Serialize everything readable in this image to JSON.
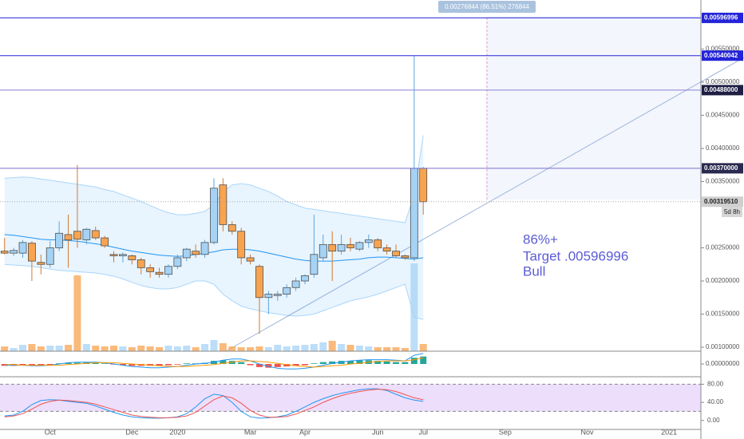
{
  "chart_data": [
    {
      "type": "candlestick",
      "categories": [
        null,
        null,
        null,
        null,
        null,
        "Oct",
        null,
        null,
        null,
        null,
        null,
        null,
        null,
        null,
        "Dec",
        null,
        null,
        null,
        null,
        "2020",
        null,
        null,
        null,
        null,
        null,
        null,
        null,
        "Mar",
        null,
        null,
        null,
        null,
        null,
        "Apr",
        null,
        null,
        null,
        null,
        null,
        null,
        null,
        "Jun",
        null,
        null,
        null,
        null,
        "Jul",
        null,
        null,
        null,
        null,
        null,
        null,
        null,
        null,
        "Sep",
        null,
        null,
        null,
        null,
        null,
        null,
        null,
        null,
        "Nov",
        null,
        null,
        null,
        null,
        null,
        null,
        null,
        null,
        "2021",
        null,
        null,
        null
      ],
      "open": [
        0.00245,
        0.00242,
        0.00242,
        0.00257,
        0.00228,
        0.00225,
        0.0025,
        0.0027,
        0.00275,
        0.00262,
        0.00276,
        0.00265,
        0.0024,
        0.00238,
        0.00238,
        0.00232,
        0.0022,
        0.00213,
        0.0021,
        0.00222,
        0.00235,
        0.00245,
        0.0024,
        0.00258,
        0.00345,
        0.00285,
        0.00275,
        0.00235,
        0.00222,
        0.00175,
        0.00178,
        0.0018,
        0.0019,
        0.002,
        0.0021,
        0.00235,
        0.00255,
        0.00245,
        0.00255,
        0.00248,
        0.00258,
        0.00262,
        0.0025,
        0.00245,
        0.00238,
        0.00235,
        0.0037,
        null,
        null,
        null,
        null,
        null,
        null,
        null,
        null,
        null,
        null,
        null,
        null,
        null,
        null,
        null,
        null,
        null,
        null,
        null,
        null,
        null,
        null,
        null,
        null,
        null,
        null,
        null,
        null,
        null,
        null
      ],
      "high": [
        0.00265,
        0.0025,
        0.00262,
        0.0026,
        0.0024,
        0.0026,
        0.0029,
        0.003,
        0.00375,
        0.0028,
        0.00282,
        0.00268,
        0.00245,
        0.00243,
        0.0024,
        0.00235,
        0.00225,
        0.0022,
        0.00225,
        0.0024,
        0.0025,
        0.00255,
        0.00262,
        0.00355,
        0.00355,
        0.0029,
        0.0028,
        0.0024,
        0.00225,
        0.00185,
        0.00185,
        0.00195,
        0.00205,
        0.0021,
        0.003,
        0.0027,
        0.00275,
        0.0027,
        0.00265,
        0.0026,
        0.0027,
        0.00265,
        0.00255,
        0.00255,
        0.0024,
        0.00540042,
        0.00372,
        null,
        null,
        null,
        null,
        null,
        null,
        null,
        null,
        null,
        null,
        null,
        null,
        null,
        null,
        null,
        null,
        null,
        null,
        null,
        null,
        null,
        null,
        null,
        null,
        null,
        null,
        null,
        null,
        null,
        null
      ],
      "low": [
        0.0024,
        0.00238,
        0.00235,
        0.002,
        0.0021,
        0.0022,
        0.00245,
        0.0022,
        0.0025,
        0.00255,
        0.00262,
        0.0025,
        0.00228,
        0.00228,
        0.00225,
        0.0021,
        0.00205,
        0.00205,
        0.00205,
        0.00218,
        0.0023,
        0.00235,
        0.00235,
        0.00255,
        0.00275,
        0.0027,
        0.00225,
        0.00225,
        0.0012,
        0.0015,
        0.0017,
        0.00175,
        0.00185,
        0.00195,
        0.00205,
        0.0023,
        0.002,
        0.0024,
        0.00245,
        0.00245,
        0.0025,
        0.00245,
        0.0024,
        0.00235,
        0.00232,
        0.0023,
        0.003,
        null,
        null,
        null,
        null,
        null,
        null,
        null,
        null,
        null,
        null,
        null,
        null,
        null,
        null,
        null,
        null,
        null,
        null,
        null,
        null,
        null,
        null,
        null,
        null,
        null,
        null,
        null,
        null,
        null,
        null
      ],
      "close": [
        0.00242,
        0.00246,
        0.00258,
        0.0023,
        0.00225,
        0.0025,
        0.00272,
        0.00262,
        0.00263,
        0.00278,
        0.00265,
        0.00253,
        0.00238,
        0.0024,
        0.00232,
        0.0022,
        0.00214,
        0.0021,
        0.00222,
        0.00235,
        0.00248,
        0.0024,
        0.00258,
        0.0034,
        0.00285,
        0.00275,
        0.00235,
        0.0023,
        0.00175,
        0.0018,
        0.0018,
        0.0019,
        0.002,
        0.00208,
        0.0024,
        0.00255,
        0.00245,
        0.00255,
        0.0025,
        0.00258,
        0.00262,
        0.0025,
        0.00245,
        0.00238,
        0.00235,
        0.0037,
        0.0031951,
        null,
        null,
        null,
        null,
        null,
        null,
        null,
        null,
        null,
        null,
        null,
        null,
        null,
        null,
        null,
        null,
        null,
        null,
        null,
        null,
        null,
        null,
        null,
        null,
        null,
        null,
        null,
        null,
        null,
        null
      ],
      "up_color": "#a5d3f5",
      "down_color": "#f7a350",
      "border_color": "#505050",
      "ylim": [
        0.00094,
        0.00624
      ],
      "yticks": [
        {
          "value": 0.001,
          "label": "0.00100000"
        },
        {
          "value": 0.0015,
          "label": "0.00150000"
        },
        {
          "value": 0.002,
          "label": "0.00200000"
        },
        {
          "value": 0.0025,
          "label": "0.00250000"
        },
        {
          "value": 0.0035,
          "label": "0.00350000"
        },
        {
          "value": 0.004,
          "label": "0.00400000"
        },
        {
          "value": 0.0045,
          "label": "0.00450000"
        },
        {
          "value": 0.005,
          "label": "0.00500000"
        },
        {
          "value": 0.0055,
          "label": "0.00550000"
        }
      ],
      "grid": false,
      "price_markers": [
        {
          "value": 0.00596996,
          "color": "#2424d8",
          "text_color": "#ffffff"
        },
        {
          "value": 0.00540042,
          "color": "#2424d8",
          "text_color": "#ffffff"
        },
        {
          "value": 0.00488,
          "label": "0.00488000",
          "color": "#1f1f45",
          "line_color": "#8a7fd8",
          "text_color": "#ffffff"
        },
        {
          "value": 0.0037,
          "label": "0.00370000",
          "color": "#2a2a50",
          "line_color": "#7a6fd0",
          "text_color": "#ffffff"
        },
        {
          "value": 0.0031951,
          "label": "0.00319510",
          "color": "#cfcfcf",
          "line_color": "#aaaaaa",
          "text_color": "#222222"
        }
      ],
      "countdown": "5d 8h",
      "measure_label": "0.00276844 (86.51%) 276844",
      "annotation": [
        "86%+",
        "Target .00596996",
        "Bull"
      ],
      "annotation_color": "#5c5cd6"
    },
    {
      "type": "volume",
      "values": [
        6,
        4,
        8,
        9,
        6,
        7,
        7,
        8,
        95,
        9,
        7,
        6,
        7,
        6,
        5,
        7,
        6,
        5,
        7,
        6,
        7,
        5,
        9,
        14,
        10,
        6,
        5,
        5,
        6,
        5,
        8,
        6,
        7,
        8,
        9,
        11,
        13,
        9,
        8,
        7,
        6,
        5,
        5,
        5,
        4,
        110,
        9
      ]
    },
    {
      "type": "bollinger",
      "basis": [
        0.0027,
        0.00269,
        0.00267,
        0.00265,
        0.00263,
        0.00262,
        0.00262,
        0.00261,
        0.0026,
        0.00258,
        0.00256,
        0.00254,
        0.00251,
        0.00248,
        0.00245,
        0.00243,
        0.00241,
        0.00239,
        0.00238,
        0.00237,
        0.00238,
        0.0024,
        0.00242,
        0.00244,
        0.00247,
        0.00248,
        0.00248,
        0.00247,
        0.00245,
        0.00242,
        0.00239,
        0.00236,
        0.00233,
        0.00231,
        0.0023,
        0.0023,
        0.0023,
        0.00231,
        0.00232,
        0.00233,
        0.00235,
        0.00236,
        0.00236,
        0.00235,
        0.00234,
        0.00233,
        0.00235
      ],
      "upper": [
        0.00355,
        0.00356,
        0.00357,
        0.00356,
        0.00354,
        0.00352,
        0.0035,
        0.00348,
        0.00346,
        0.00344,
        0.00342,
        0.00338,
        0.00335,
        0.0033,
        0.00325,
        0.0032,
        0.00314,
        0.00308,
        0.00303,
        0.003,
        0.003,
        0.00302,
        0.00305,
        0.00315,
        0.00335,
        0.00345,
        0.00347,
        0.00345,
        0.0034,
        0.00335,
        0.00328,
        0.0032,
        0.00315,
        0.0031,
        0.00308,
        0.00306,
        0.00304,
        0.00302,
        0.003,
        0.00298,
        0.00296,
        0.00294,
        0.00292,
        0.0029,
        0.00288,
        0.0033,
        0.0042
      ],
      "lower": [
        0.00225,
        0.00224,
        0.00223,
        0.00222,
        0.0022,
        0.00218,
        0.00216,
        0.00215,
        0.00214,
        0.00213,
        0.00212,
        0.0021,
        0.00207,
        0.00203,
        0.00198,
        0.00193,
        0.0019,
        0.00188,
        0.00188,
        0.0019,
        0.00195,
        0.002,
        0.002,
        0.00195,
        0.0018,
        0.0017,
        0.00162,
        0.00158,
        0.00155,
        0.00152,
        0.0015,
        0.00148,
        0.00147,
        0.00148,
        0.0015,
        0.00155,
        0.0016,
        0.00165,
        0.0017,
        0.00173,
        0.00176,
        0.0018,
        0.00185,
        0.0019,
        0.00195,
        0.00145,
        0.00142
      ],
      "color": "#2196f3"
    },
    {
      "type": "macd",
      "hist": [
        -3e-05,
        -3e-05,
        -2e-05,
        -2e-05,
        -3e-05,
        -2e-05,
        1e-05,
        2e-05,
        2e-05,
        3e-05,
        2e-05,
        1e-05,
        -1e-05,
        -2e-05,
        -3e-05,
        -3e-05,
        -3e-05,
        -3e-05,
        -2e-05,
        -1e-05,
        1e-05,
        1e-05,
        2e-05,
        5e-05,
        6e-05,
        5e-05,
        3e-05,
        -2e-05,
        -5e-05,
        -6e-05,
        -5e-05,
        -4e-05,
        -3e-05,
        -2e-05,
        1e-05,
        3e-05,
        4e-05,
        5e-05,
        5e-05,
        6e-05,
        6e-05,
        5e-05,
        4e-05,
        3e-05,
        3e-05,
        0.0001,
        0.00012
      ],
      "macd": [
        -2e-05,
        -2e-05,
        -2e-05,
        -3e-05,
        -3e-05,
        -2e-05,
        0,
        2e-05,
        3e-05,
        3e-05,
        3e-05,
        2e-05,
        0,
        -2e-05,
        -4e-05,
        -5e-05,
        -6e-05,
        -6e-05,
        -5e-05,
        -4e-05,
        -2e-05,
        0,
        1e-05,
        3e-05,
        6e-05,
        8e-05,
        8e-05,
        5e-05,
        0,
        -4e-05,
        -7e-05,
        -8e-05,
        -8e-05,
        -7e-05,
        -5e-05,
        -2e-05,
        1e-05,
        3e-05,
        5e-05,
        6e-05,
        7e-05,
        7e-05,
        7e-05,
        6e-05,
        5e-05,
        0.00014,
        0.00017
      ],
      "signal": [
        -1e-05,
        -1e-05,
        -2e-05,
        -2e-05,
        -2e-05,
        -2e-05,
        -2e-05,
        -1e-05,
        0,
        1e-05,
        2e-05,
        2e-05,
        2e-05,
        1e-05,
        0,
        -1e-05,
        -2e-05,
        -3e-05,
        -4e-05,
        -4e-05,
        -4e-05,
        -3e-05,
        -2e-05,
        -1e-05,
        1e-05,
        3e-05,
        5e-05,
        5e-05,
        4e-05,
        3e-05,
        1e-05,
        -1e-05,
        -3e-05,
        -4e-05,
        -5e-05,
        -4e-05,
        -3e-05,
        -2e-05,
        0,
        1e-05,
        3e-05,
        4e-05,
        5e-05,
        5e-05,
        5e-05,
        7e-05,
        0.0001
      ],
      "ylim": [
        -0.00018,
        0.00018
      ],
      "yticks": [
        {
          "value": 0,
          "label": "0.00000000"
        }
      ],
      "up_color": "#26a69a",
      "down_color": "#ef5350",
      "macd_color": "#2196f3",
      "signal_color": "#ff9800"
    },
    {
      "type": "stoch",
      "k": [
        10,
        12,
        20,
        35,
        44,
        46,
        45,
        42,
        40,
        38,
        32,
        25,
        18,
        12,
        8,
        6,
        5,
        5,
        6,
        8,
        15,
        30,
        48,
        58,
        55,
        40,
        20,
        8,
        5,
        6,
        8,
        12,
        20,
        30,
        40,
        48,
        55,
        60,
        64,
        68,
        70,
        70,
        66,
        58,
        50,
        45,
        42
      ],
      "d": [
        8,
        10,
        15,
        25,
        36,
        42,
        45,
        44,
        42,
        40,
        36,
        30,
        24,
        18,
        12,
        9,
        7,
        6,
        6,
        7,
        10,
        18,
        32,
        46,
        54,
        50,
        38,
        22,
        12,
        7,
        7,
        9,
        14,
        22,
        30,
        40,
        48,
        55,
        60,
        64,
        67,
        69,
        68,
        64,
        57,
        50,
        46
      ],
      "band": [
        20,
        80
      ],
      "ylim": [
        -18,
        93
      ],
      "yticks": [
        {
          "value": 80,
          "label": "80.00"
        },
        {
          "value": 40,
          "label": "40.00"
        },
        {
          "value": 0,
          "label": "0.00"
        }
      ],
      "k_color": "#2196f3",
      "d_color": "#ef5350",
      "band_color": "#e1c8fa"
    }
  ]
}
